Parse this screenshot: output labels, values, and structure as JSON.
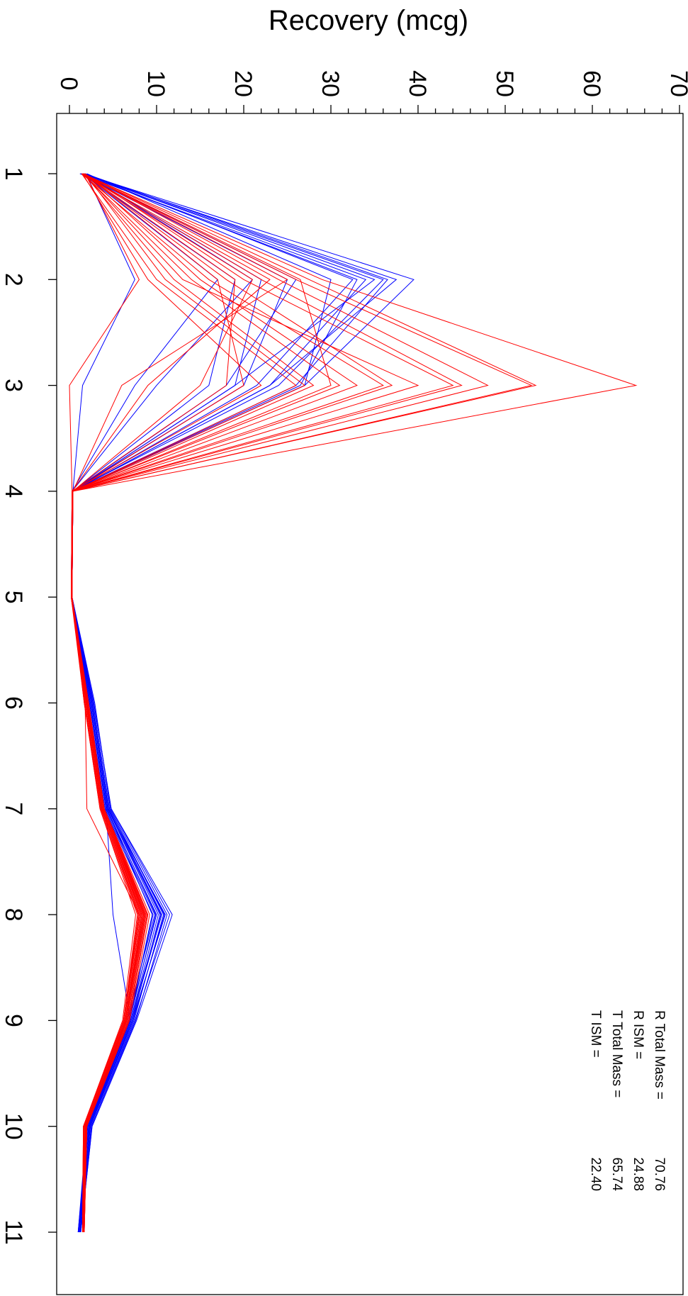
{
  "chart_data": {
    "type": "line",
    "title": "",
    "ylabel": "Recovery  (mcg)",
    "xlabel": "",
    "x": [
      1,
      2,
      3,
      4,
      5,
      6,
      7,
      8,
      9,
      10,
      11
    ],
    "x_tick_labels": [
      "1",
      "2",
      "3",
      "4",
      "5",
      "6",
      "7",
      "8",
      "9",
      "10",
      "11"
    ],
    "ylim": [
      0,
      70
    ],
    "y_ticks": [
      0,
      10,
      20,
      30,
      40,
      50,
      60,
      70
    ],
    "y_tick_labels": [
      "0",
      "10",
      "20",
      "30",
      "40",
      "50",
      "60",
      "70"
    ],
    "orientation": "rotated-90-clockwise",
    "grid": false,
    "legend": "none",
    "annotations": [
      {
        "label": "R Total Mass =",
        "value": "70.76"
      },
      {
        "label": "R ISM =",
        "value": "24.88"
      },
      {
        "label": "T Total Mass =",
        "value": "65.74"
      },
      {
        "label": "T ISM =",
        "value": "22.40"
      }
    ],
    "series_groups": [
      {
        "color": "#0000ff",
        "series": [
          {
            "values": [
              1.5,
              39.5,
              27.0,
              0.4,
              0.3,
              2.8,
              4.8,
              11.5,
              7.5,
              2.5,
              1.2
            ]
          },
          {
            "values": [
              1.5,
              37.5,
              23.0,
              0.4,
              0.3,
              2.5,
              4.5,
              10.5,
              7.0,
              2.3,
              1.2
            ]
          },
          {
            "values": [
              1.8,
              36.5,
              26.0,
              0.3,
              0.3,
              2.6,
              4.4,
              11.0,
              7.2,
              2.4,
              1.1
            ]
          },
          {
            "values": [
              1.6,
              35.0,
              19.0,
              0.4,
              0.2,
              2.4,
              4.2,
              10.0,
              6.8,
              2.2,
              1.0
            ]
          },
          {
            "values": [
              1.2,
              34.0,
              23.0,
              0.4,
              0.3,
              2.7,
              4.6,
              10.8,
              7.4,
              2.5,
              1.3
            ]
          },
          {
            "values": [
              1.4,
              33.0,
              26.5,
              0.3,
              0.2,
              2.3,
              4.3,
              9.5,
              6.9,
              2.1,
              1.1
            ]
          },
          {
            "values": [
              1.7,
              32.5,
              21.5,
              0.4,
              0.3,
              2.5,
              4.4,
              10.2,
              7.0,
              2.3,
              1.2
            ]
          },
          {
            "values": [
              2.0,
              30.0,
              27.0,
              0.3,
              0.3,
              2.9,
              4.7,
              11.2,
              7.6,
              2.6,
              1.3
            ]
          },
          {
            "values": [
              1.5,
              26.0,
              18.0,
              0.4,
              0.2,
              2.2,
              4.1,
              9.8,
              6.6,
              2.0,
              1.0
            ]
          },
          {
            "values": [
              1.3,
              25.0,
              20.0,
              0.3,
              0.3,
              2.6,
              4.5,
              10.6,
              7.1,
              2.4,
              1.2
            ]
          },
          {
            "values": [
              1.6,
              22.0,
              19.0,
              0.4,
              0.3,
              2.4,
              4.3,
              9.9,
              6.9,
              2.2,
              1.1
            ]
          },
          {
            "values": [
              1.8,
              21.0,
              10.0,
              0.3,
              0.2,
              2.1,
              4.0,
              9.6,
              6.8,
              2.1,
              1.0
            ]
          },
          {
            "values": [
              1.4,
              19.0,
              16.0,
              0.4,
              0.3,
              2.5,
              4.4,
              10.4,
              7.2,
              2.3,
              1.2
            ]
          },
          {
            "values": [
              1.5,
              17.0,
              7.5,
              0.3,
              0.3,
              2.7,
              4.6,
              10.9,
              7.3,
              2.4,
              1.2
            ]
          },
          {
            "values": [
              1.9,
              7.5,
              1.5,
              0.4,
              0.2,
              2.3,
              4.2,
              5.0,
              7.0,
              2.2,
              1.1
            ]
          },
          {
            "values": [
              1.5,
              36.0,
              24.0,
              0.3,
              0.3,
              2.8,
              4.8,
              11.8,
              7.7,
              2.6,
              1.3
            ]
          }
        ]
      },
      {
        "color": "#ff0000",
        "series": [
          {
            "values": [
              1.5,
              29.0,
              65.0,
              0.4,
              0.3,
              2.0,
              3.8,
              8.5,
              6.5,
              1.8,
              1.6
            ]
          },
          {
            "values": [
              1.6,
              27.5,
              53.5,
              0.3,
              0.3,
              1.8,
              3.6,
              8.0,
              6.3,
              1.7,
              1.5
            ]
          },
          {
            "values": [
              1.4,
              26.0,
              53.0,
              0.4,
              0.2,
              2.1,
              3.9,
              8.8,
              6.6,
              1.9,
              1.7
            ]
          },
          {
            "values": [
              1.7,
              24.0,
              48.0,
              0.3,
              0.3,
              1.9,
              3.7,
              8.2,
              6.4,
              1.8,
              1.6
            ]
          },
          {
            "values": [
              1.5,
              22.0,
              45.0,
              0.4,
              0.3,
              2.0,
              3.8,
              8.6,
              6.5,
              1.9,
              1.6
            ]
          },
          {
            "values": [
              1.8,
              20.0,
              44.0,
              0.3,
              0.2,
              1.7,
              3.5,
              7.8,
              6.2,
              1.6,
              1.5
            ]
          },
          {
            "values": [
              1.6,
              18.0,
              37.0,
              0.4,
              0.3,
              2.2,
              4.0,
              9.0,
              6.8,
              2.0,
              1.7
            ]
          },
          {
            "values": [
              1.4,
              16.0,
              36.0,
              0.3,
              0.3,
              1.9,
              3.7,
              8.4,
              6.4,
              1.8,
              1.6
            ]
          },
          {
            "values": [
              1.7,
              15.0,
              33.0,
              0.4,
              0.2,
              2.0,
              3.8,
              8.7,
              6.6,
              1.9,
              1.6
            ]
          },
          {
            "values": [
              1.5,
              14.0,
              31.0,
              0.3,
              0.3,
              1.8,
              3.6,
              8.1,
              6.3,
              1.7,
              1.5
            ]
          },
          {
            "values": [
              1.6,
              12.0,
              28.0,
              0.4,
              0.3,
              2.1,
              3.9,
              8.9,
              6.7,
              2.0,
              1.7
            ]
          },
          {
            "values": [
              1.8,
              11.0,
              27.0,
              0.3,
              0.2,
              1.9,
              3.7,
              8.3,
              6.5,
              1.8,
              1.6
            ]
          },
          {
            "values": [
              1.4,
              10.0,
              26.0,
              0.4,
              0.3,
              2.0,
              3.8,
              8.5,
              6.5,
              1.9,
              1.6
            ]
          },
          {
            "values": [
              1.5,
              9.0,
              22.0,
              0.3,
              0.3,
              1.7,
              3.5,
              7.6,
              6.1,
              1.6,
              1.5
            ]
          },
          {
            "values": [
              1.7,
              17.0,
              20.0,
              0.4,
              0.2,
              2.2,
              4.0,
              9.2,
              6.9,
              2.0,
              1.7
            ]
          },
          {
            "values": [
              1.6,
              19.0,
              18.0,
              0.3,
              0.3,
              1.8,
              2.0,
              8.0,
              6.2,
              1.7,
              1.5
            ]
          },
          {
            "values": [
              1.5,
              21.0,
              15.0,
              0.4,
              0.3,
              2.1,
              3.9,
              8.7,
              6.6,
              1.9,
              1.6
            ]
          },
          {
            "values": [
              1.4,
              23.0,
              9.0,
              0.3,
              0.2,
              1.9,
              3.7,
              8.2,
              6.4,
              1.8,
              1.6
            ]
          },
          {
            "values": [
              1.6,
              25.0,
              6.0,
              0.4,
              0.3,
              2.0,
              3.8,
              8.6,
              6.5,
              1.9,
              1.6
            ]
          },
          {
            "values": [
              1.8,
              8.0,
              0.0,
              0.3,
              0.3,
              1.7,
              3.6,
              7.9,
              6.2,
              1.6,
              1.5
            ]
          },
          {
            "values": [
              1.5,
              26.5,
              30.0,
              0.4,
              0.2,
              2.1,
              3.9,
              9.0,
              6.8,
              2.0,
              1.7
            ]
          },
          {
            "values": [
              1.6,
              13.0,
              40.0,
              0.3,
              0.3,
              1.9,
              3.7,
              8.4,
              6.5,
              1.8,
              1.6
            ]
          }
        ]
      }
    ]
  }
}
